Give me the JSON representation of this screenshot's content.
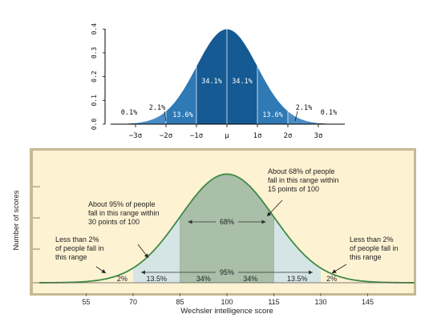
{
  "chart_data": [
    {
      "type": "area",
      "x_ticks": [
        "−3σ",
        "−2σ",
        "−1σ",
        "μ",
        "1σ",
        "2σ",
        "3σ"
      ],
      "y_ticks": [
        "0.0",
        "0.1",
        "0.2",
        "0.3",
        "0.4"
      ],
      "ylim": [
        0,
        0.4
      ],
      "segments": [
        {
          "range": [
            -4,
            -3
          ],
          "label": "0.1%",
          "color": "#3c6b9a"
        },
        {
          "range": [
            -3,
            -2
          ],
          "label": "2.1%",
          "color": "#4a8cc5"
        },
        {
          "range": [
            -2,
            -1
          ],
          "label": "13.6%",
          "color": "#2f79b5"
        },
        {
          "range": [
            -1,
            0
          ],
          "label": "34.1%",
          "color": "#155a93"
        },
        {
          "range": [
            0,
            1
          ],
          "label": "34.1%",
          "color": "#155a93"
        },
        {
          "range": [
            1,
            2
          ],
          "label": "13.6%",
          "color": "#2f79b5"
        },
        {
          "range": [
            2,
            3
          ],
          "label": "2.1%",
          "color": "#4a8cc5"
        },
        {
          "range": [
            3,
            4
          ],
          "label": "0.1%",
          "color": "#3c6b9a"
        }
      ]
    },
    {
      "type": "area",
      "xlabel": "Wechsler intelligence score",
      "ylabel": "Number of scores",
      "x_ticks": [
        55,
        70,
        85,
        100,
        115,
        130,
        145
      ],
      "mean": 100,
      "sd": 15,
      "bands": [
        "2%",
        "13.5%",
        "34%",
        "34%",
        "13.5%",
        "2%"
      ],
      "range_labels": {
        "inner": "68%",
        "outer": "95%"
      },
      "annotations": {
        "left_tail": [
          "Less than 2%",
          "of people fall in",
          "this range"
        ],
        "ninety_five": [
          "About 95% of people",
          "fall in this range within",
          "30 points of 100"
        ],
        "sixty_eight": [
          "About 68% of people",
          "fall in this range within",
          "15 points of 100"
        ],
        "right_tail": [
          "Less than 2%",
          "of people fall in",
          "this range"
        ]
      },
      "colors": {
        "background": "#fdf2d2",
        "curve": "#3f8a47",
        "inner": "#a9bfa8",
        "outer": "#d5e5e6"
      }
    }
  ]
}
